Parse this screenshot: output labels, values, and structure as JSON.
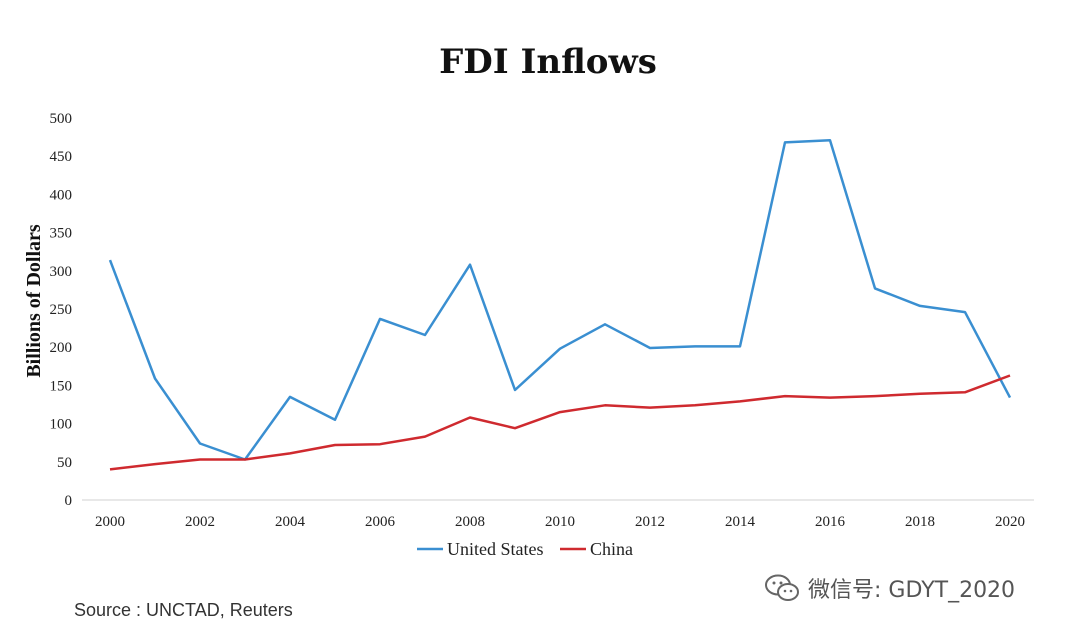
{
  "chart_data": {
    "type": "line",
    "title": "FDI Inflows",
    "ylabel": "Billions of Dollars",
    "xlabel": "",
    "ylim": [
      0,
      500
    ],
    "yticks": [
      0,
      50,
      100,
      150,
      200,
      250,
      300,
      350,
      400,
      450,
      500
    ],
    "xlim": [
      2000,
      2020
    ],
    "xticks": [
      2000,
      2002,
      2004,
      2006,
      2008,
      2010,
      2012,
      2014,
      2016,
      2018,
      2020
    ],
    "grid": false,
    "legend_position": "bottom",
    "x": [
      2000,
      2001,
      2002,
      2003,
      2004,
      2005,
      2006,
      2007,
      2008,
      2009,
      2010,
      2011,
      2012,
      2013,
      2014,
      2015,
      2016,
      2017,
      2018,
      2019,
      2020
    ],
    "series": [
      {
        "name": "United States",
        "color": "#3a8fd1",
        "values": [
          314,
          159,
          74,
          53,
          135,
          105,
          237,
          216,
          308,
          144,
          198,
          230,
          199,
          201,
          201,
          468,
          471,
          277,
          254,
          246,
          134
        ]
      },
      {
        "name": "China",
        "color": "#cf2a2f",
        "values": [
          40,
          47,
          53,
          53,
          61,
          72,
          73,
          83,
          108,
          94,
          115,
          124,
          121,
          124,
          129,
          136,
          134,
          136,
          139,
          141,
          163
        ]
      }
    ]
  },
  "source": "Source : UNCTAD, Reuters",
  "watermark": {
    "icon": "wechat-logo-icon",
    "text": "微信号: GDYT_2020"
  }
}
